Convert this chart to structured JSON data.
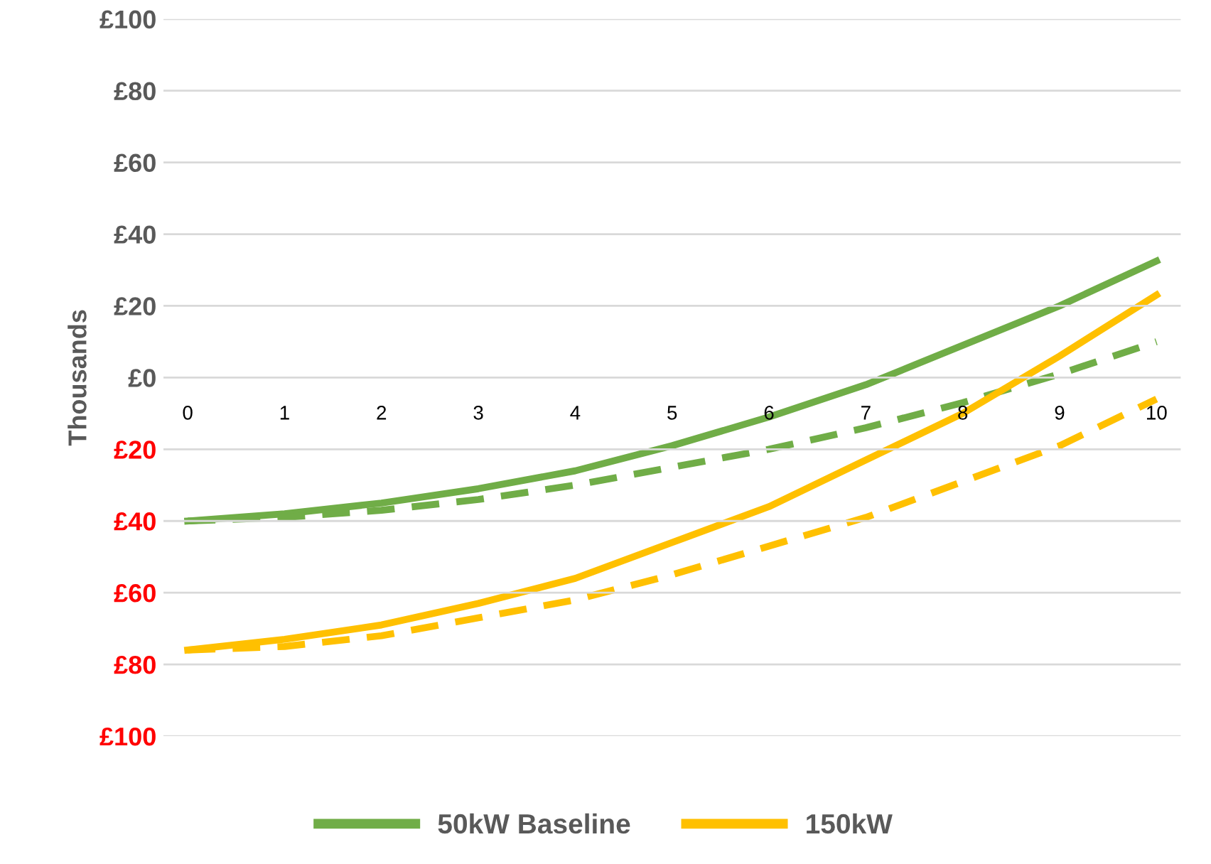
{
  "chart_data": {
    "type": "line",
    "ylabel": "Thousands",
    "categories": [
      "0",
      "1",
      "2",
      "3",
      "4",
      "5",
      "6",
      "7",
      "8",
      "9",
      "10"
    ],
    "series": [
      {
        "name": "50kW Baseline",
        "color": "#70ad47",
        "values": [
          -40,
          -38,
          -35,
          -31,
          -26,
          -19,
          -11,
          -2,
          9,
          20,
          32.5
        ]
      },
      {
        "color": "#70ad47",
        "line_style": "dashed",
        "values": [
          -40,
          -39,
          -37,
          -34,
          -30,
          -25,
          -20,
          -14,
          -7,
          1,
          10
        ]
      },
      {
        "name": "150kW",
        "color": "#ffc000",
        "values": [
          -76,
          -73,
          -69,
          -63,
          -56,
          -46,
          -36,
          -23,
          -10,
          6,
          23
        ]
      },
      {
        "color": "#ffc000",
        "line_style": "dashed",
        "values": [
          -76,
          -75,
          -72,
          -67,
          -62,
          -55,
          -47,
          -39,
          -29,
          -19,
          -6
        ]
      }
    ],
    "ylim": [
      -100,
      100
    ],
    "yticks": [
      {
        "value": -100,
        "label": "£100"
      },
      {
        "value": -80,
        "label": "£80"
      },
      {
        "value": -60,
        "label": "£60"
      },
      {
        "value": -40,
        "label": "£40"
      },
      {
        "value": -20,
        "label": "£20"
      },
      {
        "value": 0,
        "label": "£0"
      },
      {
        "value": 20,
        "label": "£20"
      },
      {
        "value": 40,
        "label": "£40"
      },
      {
        "value": 60,
        "label": "£60"
      },
      {
        "value": 80,
        "label": "£80"
      },
      {
        "value": 100,
        "label": "£100"
      }
    ],
    "grid": "y",
    "legend": "bottom",
    "line_style": "solid",
    "marker": "none"
  }
}
